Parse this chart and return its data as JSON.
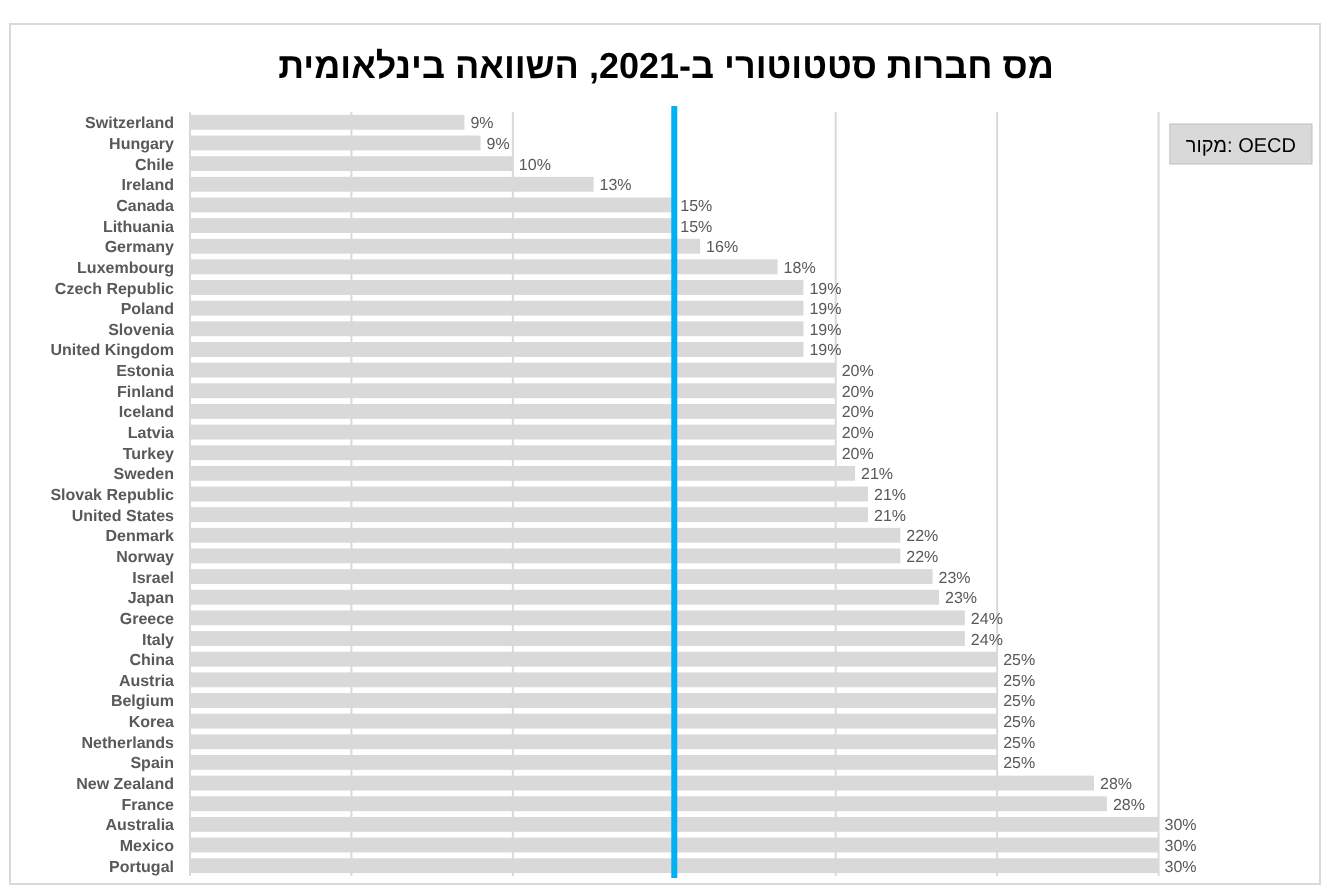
{
  "chart_data": {
    "type": "bar",
    "orientation": "horizontal",
    "title": "מס חברות סטטוטורי ב-2021, השוואה בינלאומית",
    "annotations": [
      "מקור: OECD"
    ],
    "categories": [
      "Switzerland",
      "Hungary",
      "Chile",
      "Ireland",
      "Canada",
      "Lithuania",
      "Germany",
      "Luxembourg",
      "Czech Republic",
      "Poland",
      "Slovenia",
      "United Kingdom",
      "Estonia",
      "Finland",
      "Iceland",
      "Latvia",
      "Turkey",
      "Sweden",
      "Slovak Republic",
      "United States",
      "Denmark",
      "Norway",
      "Israel",
      "Japan",
      "Greece",
      "Italy",
      "China",
      "Austria",
      "Belgium",
      "Korea",
      "Netherlands",
      "Spain",
      "New Zealand",
      "France",
      "Australia",
      "Mexico",
      "Portugal"
    ],
    "values": [
      8.5,
      9,
      10,
      12.5,
      15,
      15,
      15.8,
      18.2,
      19,
      19,
      19,
      19,
      20,
      20,
      20,
      20,
      20,
      20.6,
      21,
      21,
      22,
      22,
      23,
      23.2,
      24,
      24,
      25,
      25,
      25,
      25,
      25,
      25,
      28,
      28.4,
      30,
      30,
      30
    ],
    "value_labels": [
      "9%",
      "9%",
      "10%",
      "13%",
      "15%",
      "15%",
      "16%",
      "18%",
      "19%",
      "19%",
      "19%",
      "19%",
      "20%",
      "20%",
      "20%",
      "20%",
      "20%",
      "21%",
      "21%",
      "21%",
      "22%",
      "22%",
      "23%",
      "23%",
      "24%",
      "24%",
      "25%",
      "25%",
      "25%",
      "25%",
      "25%",
      "25%",
      "28%",
      "28%",
      "30%",
      "30%",
      "30%"
    ],
    "color": "#d9d9d9",
    "xlim": [
      0,
      35
    ],
    "xticks": [
      {
        "value": 0,
        "label": null
      },
      {
        "value": 5,
        "label": null
      },
      {
        "value": 10,
        "label": null
      },
      {
        "value": 15,
        "label": null
      },
      {
        "value": 20,
        "label": null
      },
      {
        "value": 25,
        "label": null
      },
      {
        "value": 30,
        "label": null
      },
      {
        "value": 35,
        "label": null
      }
    ],
    "grid": "x",
    "tick_labels": "y",
    "ref_lines": [
      {
        "axis": "x",
        "value": 15,
        "color": "#00b0f0"
      }
    ]
  }
}
